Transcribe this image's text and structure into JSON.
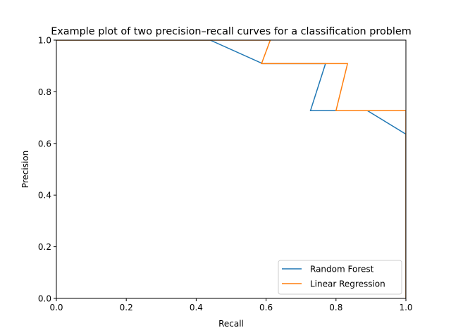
{
  "chart_data": {
    "type": "line",
    "title": "Example plot of two precision–recall curves for a classification problem",
    "xlabel": "Recall",
    "ylabel": "Precision",
    "xlim": [
      0,
      1
    ],
    "ylim": [
      0,
      1
    ],
    "xticks": [
      "0.0",
      "0.2",
      "0.4",
      "0.6",
      "0.8",
      "1.0"
    ],
    "yticks": [
      "0.0",
      "0.2",
      "0.4",
      "0.6",
      "0.8",
      "1.0"
    ],
    "grid": false,
    "legend_position": "lower-right",
    "series": [
      {
        "name": "Random Forest",
        "color": "#1f77b4",
        "x": [
          0.0,
          0.44,
          0.59,
          0.77,
          0.727,
          0.8,
          0.89,
          1.0,
          1.0
        ],
        "y": [
          1.0,
          1.0,
          0.909,
          0.909,
          0.727,
          0.727,
          0.727,
          0.636,
          0.0
        ]
      },
      {
        "name": "Linear Regression",
        "color": "#ff7f0e",
        "x": [
          0.0,
          0.612,
          0.587,
          0.833,
          0.8,
          1.0,
          1.0
        ],
        "y": [
          1.0,
          1.0,
          0.909,
          0.909,
          0.727,
          0.727,
          0.0
        ]
      }
    ]
  }
}
